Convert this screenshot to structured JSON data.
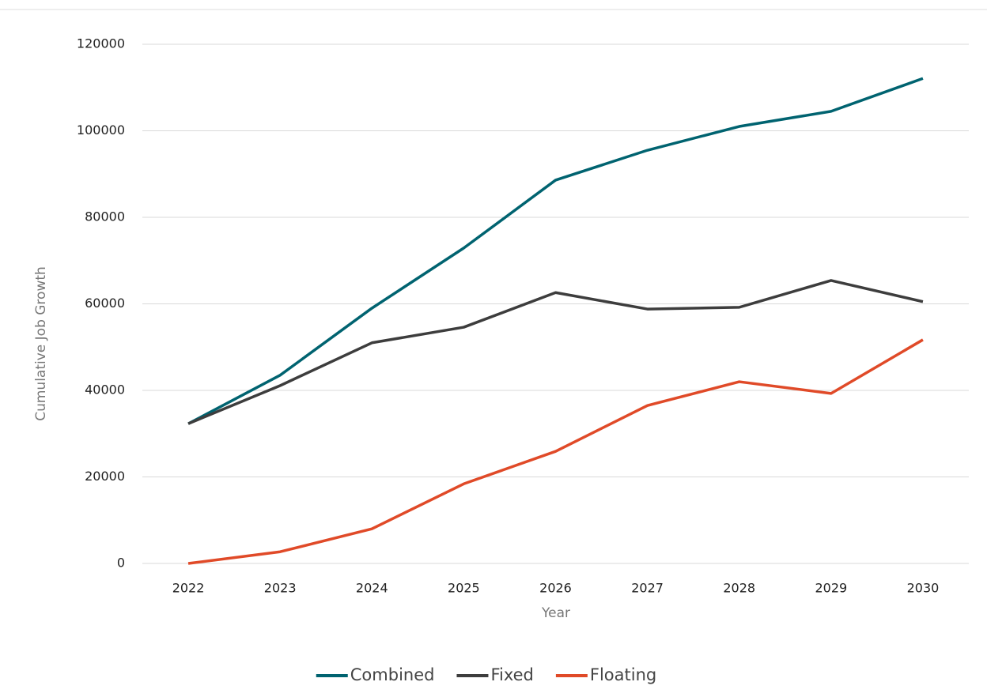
{
  "chart_data": {
    "type": "line",
    "x_label": "Year",
    "y_label": "Cumulative Job Growth",
    "categories": [
      "2022",
      "2023",
      "2024",
      "2025",
      "2026",
      "2027",
      "2028",
      "2029",
      "2030"
    ],
    "series": [
      {
        "name": "Combined",
        "color": "#006370",
        "values": [
          32300,
          43500,
          59000,
          72900,
          88600,
          95500,
          101000,
          104500,
          112100
        ]
      },
      {
        "name": "Fixed",
        "color": "#3d3d3d",
        "values": [
          32300,
          41100,
          51000,
          54600,
          62600,
          58800,
          59200,
          65400,
          60500
        ]
      },
      {
        "name": "Floating",
        "color": "#e04a28",
        "values": [
          0,
          2700,
          8000,
          18400,
          25900,
          36500,
          42000,
          39300,
          51700
        ]
      }
    ],
    "ylim": [
      0,
      120000
    ],
    "yticks": [
      0,
      20000,
      40000,
      60000,
      80000,
      100000,
      120000
    ],
    "grid": true,
    "legend": "bottom"
  }
}
